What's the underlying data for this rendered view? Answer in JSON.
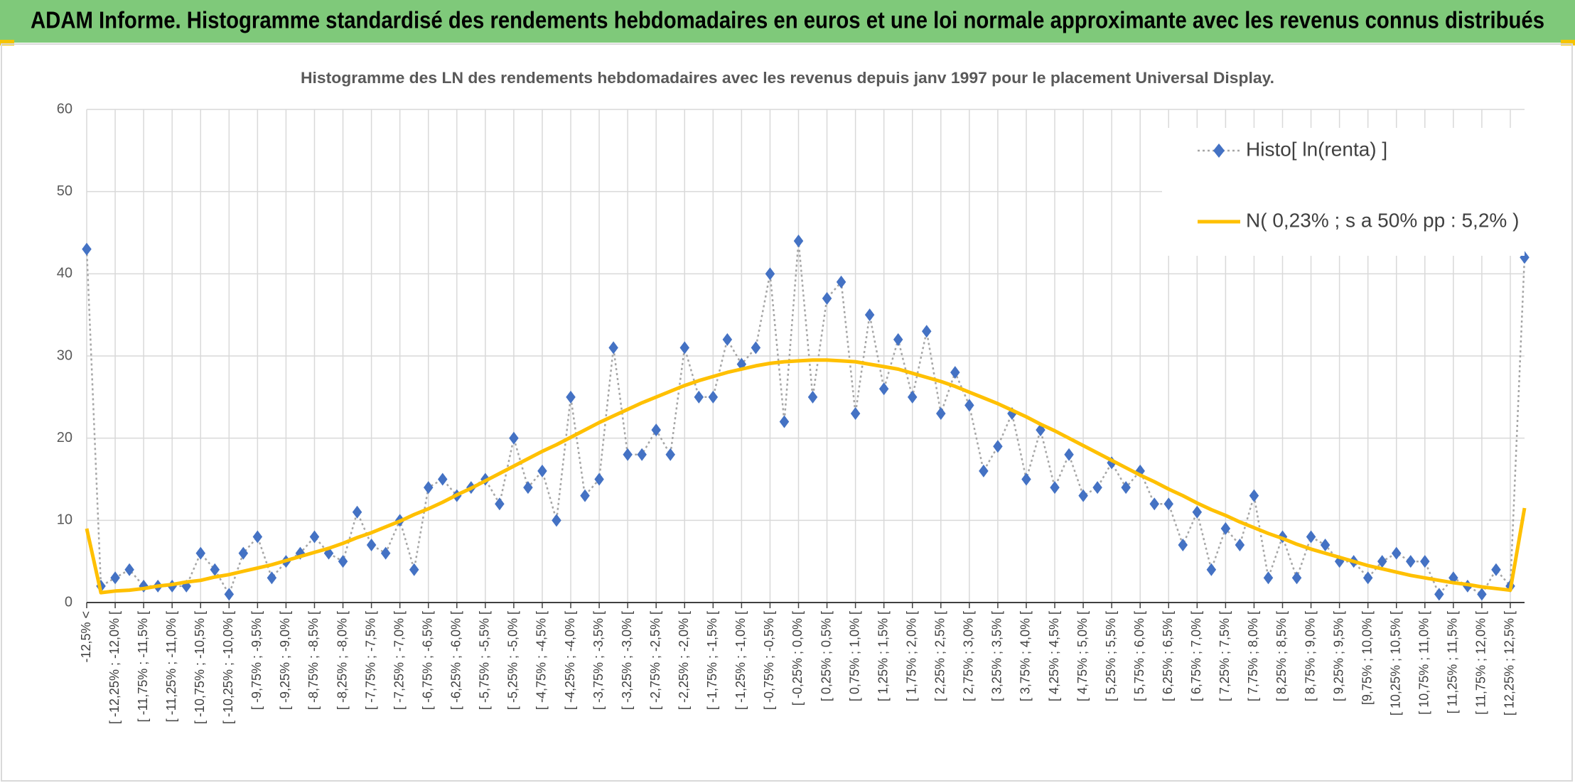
{
  "header": {
    "title": "ADAM Informe. Histogramme standardisé des rendements hebdomadaires en euros et une loi normale approximante avec les revenus connus distribués"
  },
  "chart_data": {
    "type": "line",
    "title": "Histogramme des LN des rendements hebdomadaires avec les revenus depuis janv 1997 pour le placement Universal Display.",
    "categories": [
      "-12,5% <",
      null,
      "[ -12,25% ; -12,0% [",
      null,
      "[ -11,75% ; -11,5% [",
      null,
      "[ -11,25% ; -11,0% [",
      null,
      "[ -10,75% ; -10,5% [",
      null,
      "[ -10,25% ; -10,0% [",
      null,
      "[ -9,75% ; -9,5% [",
      null,
      "[ -9,25% ; -9,0% [",
      null,
      "[ -8,75% ; -8,5% [",
      null,
      "[ -8,25% ; -8,0% [",
      null,
      "[ -7,75% ; -7,5% [",
      null,
      "[ -7,25% ; -7,0% [",
      null,
      "[ -6,75% ; -6,5% [",
      null,
      "[ -6,25% ; -6,0% [",
      null,
      "[ -5,75% ; -5,5% [",
      null,
      "[ -5,25% ; -5,0% [",
      null,
      "[ -4,75% ; -4,5% [",
      null,
      "[ -4,25% ; -4,0% [",
      null,
      "[ -3,75% ; -3,5% [",
      null,
      "[ -3,25% ; -3,0% [",
      null,
      "[ -2,75% ; -2,5% [",
      null,
      "[ -2,25% ; -2,0% [",
      null,
      "[ -1,75% ; -1,5% [",
      null,
      "[ -1,25% ; -1,0% [",
      null,
      "[ -0,75% ; -0,5% [",
      null,
      "[ -0,25% ; 0,0% [",
      null,
      "[ 0,25% ; 0,5% [",
      null,
      "[ 0,75% ; 1,0% [",
      null,
      "[ 1,25% ; 1,5% [",
      null,
      "[ 1,75% ; 2,0% [",
      null,
      "[ 2,25% ; 2,5% [",
      null,
      "[ 2,75% ; 3,0% [",
      null,
      "[ 3,25% ; 3,5% [",
      null,
      "[ 3,75% ; 4,0% [",
      null,
      "[ 4,25% ; 4,5% [",
      null,
      "[ 4,75% ; 5,0% [",
      null,
      "[ 5,25% ; 5,5% [",
      null,
      "[ 5,75% ; 6,0% [",
      null,
      "[ 6,25% ; 6,5% [",
      null,
      "[ 6,75% ; 7,0% [",
      null,
      "[ 7,25% ; 7,5% [",
      null,
      "[ 7,75% ; 8,0% [",
      null,
      "[ 8,25% ; 8,5% [",
      null,
      "[ 8,75% ; 9,0% [",
      null,
      "[ 9,25% ; 9,5% [",
      null,
      "[9,75% ; 10,0% [",
      null,
      "[ 10,25% ; 10,5% [",
      null,
      "[ 10,75% ; 11,0% [",
      null,
      "[ 11,25% ; 11,5% [",
      null,
      "[ 11,75% ; 12,0% [",
      null,
      "[ 12,25% ; 12,5% [",
      null
    ],
    "series": [
      {
        "name": "Histo[ ln(renta) ]",
        "color": "#4472c4",
        "line_color": "#a6a6a6",
        "line_style": "dotted",
        "marker": "diamond",
        "values": [
          43,
          2,
          3,
          4,
          2,
          2,
          2,
          2,
          6,
          4,
          1,
          6,
          8,
          3,
          5,
          6,
          8,
          6,
          5,
          11,
          7,
          6,
          10,
          4,
          14,
          15,
          13,
          14,
          15,
          12,
          20,
          14,
          16,
          10,
          25,
          13,
          15,
          31,
          18,
          18,
          21,
          18,
          31,
          25,
          25,
          32,
          29,
          31,
          40,
          22,
          44,
          25,
          37,
          39,
          23,
          35,
          26,
          32,
          25,
          33,
          23,
          28,
          24,
          16,
          19,
          23,
          15,
          21,
          14,
          18,
          13,
          14,
          17,
          14,
          16,
          12,
          12,
          7,
          11,
          4,
          9,
          7,
          13,
          3,
          8,
          3,
          8,
          7,
          5,
          5,
          3,
          5,
          6,
          5,
          5,
          1,
          3,
          2,
          1,
          4,
          2,
          42
        ]
      },
      {
        "name": "N( 0,23% ; s a 50% pp : 5,2% )",
        "color": "#ffc000",
        "line_style": "solid",
        "marker": "none",
        "values": [
          9,
          1.2,
          1.4,
          1.5,
          1.7,
          2.0,
          2.2,
          2.5,
          2.7,
          3.1,
          3.4,
          3.8,
          4.2,
          4.6,
          5.1,
          5.6,
          6.1,
          6.6,
          7.2,
          7.9,
          8.5,
          9.2,
          9.9,
          10.7,
          11.4,
          12.2,
          13.1,
          13.9,
          14.8,
          15.7,
          16.6,
          17.5,
          18.4,
          19.2,
          20.1,
          21.0,
          21.9,
          22.7,
          23.5,
          24.3,
          25.0,
          25.7,
          26.4,
          27.0,
          27.5,
          28.0,
          28.4,
          28.8,
          29.1,
          29.3,
          29.4,
          29.5,
          29.5,
          29.4,
          29.3,
          29.0,
          28.7,
          28.4,
          27.9,
          27.4,
          26.9,
          26.3,
          25.6,
          24.9,
          24.2,
          23.4,
          22.6,
          21.7,
          20.9,
          20.0,
          19.1,
          18.2,
          17.3,
          16.4,
          15.5,
          14.7,
          13.8,
          13.0,
          12.1,
          11.3,
          10.6,
          9.8,
          9.1,
          8.4,
          7.8,
          7.1,
          6.5,
          6.0,
          5.5,
          5.0,
          4.5,
          4.1,
          3.7,
          3.3,
          3.0,
          2.7,
          2.4,
          2.2,
          1.9,
          1.7,
          1.5,
          11.5
        ]
      }
    ],
    "ylim": [
      0,
      60
    ],
    "yticks": [
      0,
      10,
      20,
      30,
      40,
      50,
      60
    ],
    "grid": true,
    "legend": "top-right"
  }
}
